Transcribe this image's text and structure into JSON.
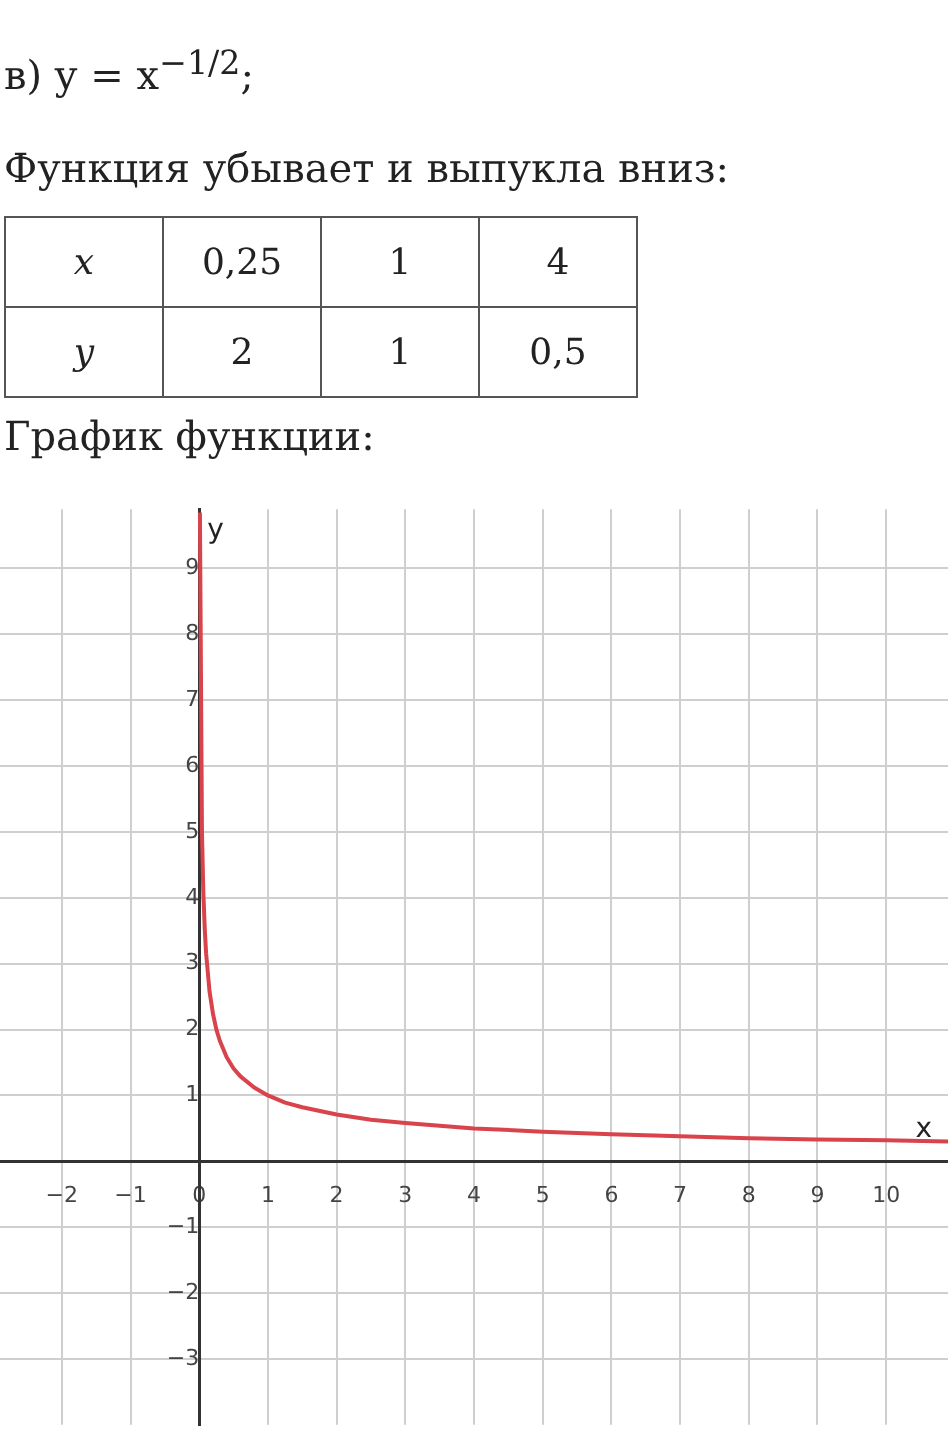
{
  "chart_data": {
    "type": "line",
    "title": "в) y = x$^{−1/2}$;",
    "subtitle": "Функция убывает и выпукла вниз:",
    "annotations": [
      "x",
      "0,25",
      "1",
      "4",
      "y",
      "2",
      "1",
      "0,5",
      "График функции:"
    ],
    "xlabel": "x",
    "ylabel": "y",
    "x": [
      0.0103,
      0.04,
      0.06,
      0.08,
      0.1,
      0.15,
      0.2,
      0.25,
      0.3,
      0.4,
      0.5,
      0.6,
      0.8,
      1,
      1.25,
      1.5,
      2,
      2.5,
      3,
      4,
      5,
      6,
      7,
      8,
      9,
      10,
      10.9
    ],
    "series": [
      {
        "color": "#d9434b",
        "values": [
          9.85,
          5,
          4.08,
          3.54,
          3.16,
          2.58,
          2.24,
          2,
          1.83,
          1.58,
          1.41,
          1.29,
          1.12,
          1,
          0.89,
          0.82,
          0.71,
          0.63,
          0.58,
          0.5,
          0.45,
          0.41,
          0.38,
          0.35,
          0.33,
          0.32,
          0.3
        ]
      }
    ],
    "xlim": [
      -2.9,
      10.9
    ],
    "ylim": [
      -4,
      9.9
    ],
    "xticks": [
      -2,
      -1,
      0,
      1,
      2,
      3,
      4,
      5,
      6,
      7,
      8,
      9,
      10
    ],
    "yticks": [
      -3,
      -2,
      -1,
      1,
      2,
      3,
      4,
      5,
      6,
      7,
      8,
      9
    ],
    "grid": true,
    "marker": "none",
    "line_style": "solid",
    "legend": false
  }
}
